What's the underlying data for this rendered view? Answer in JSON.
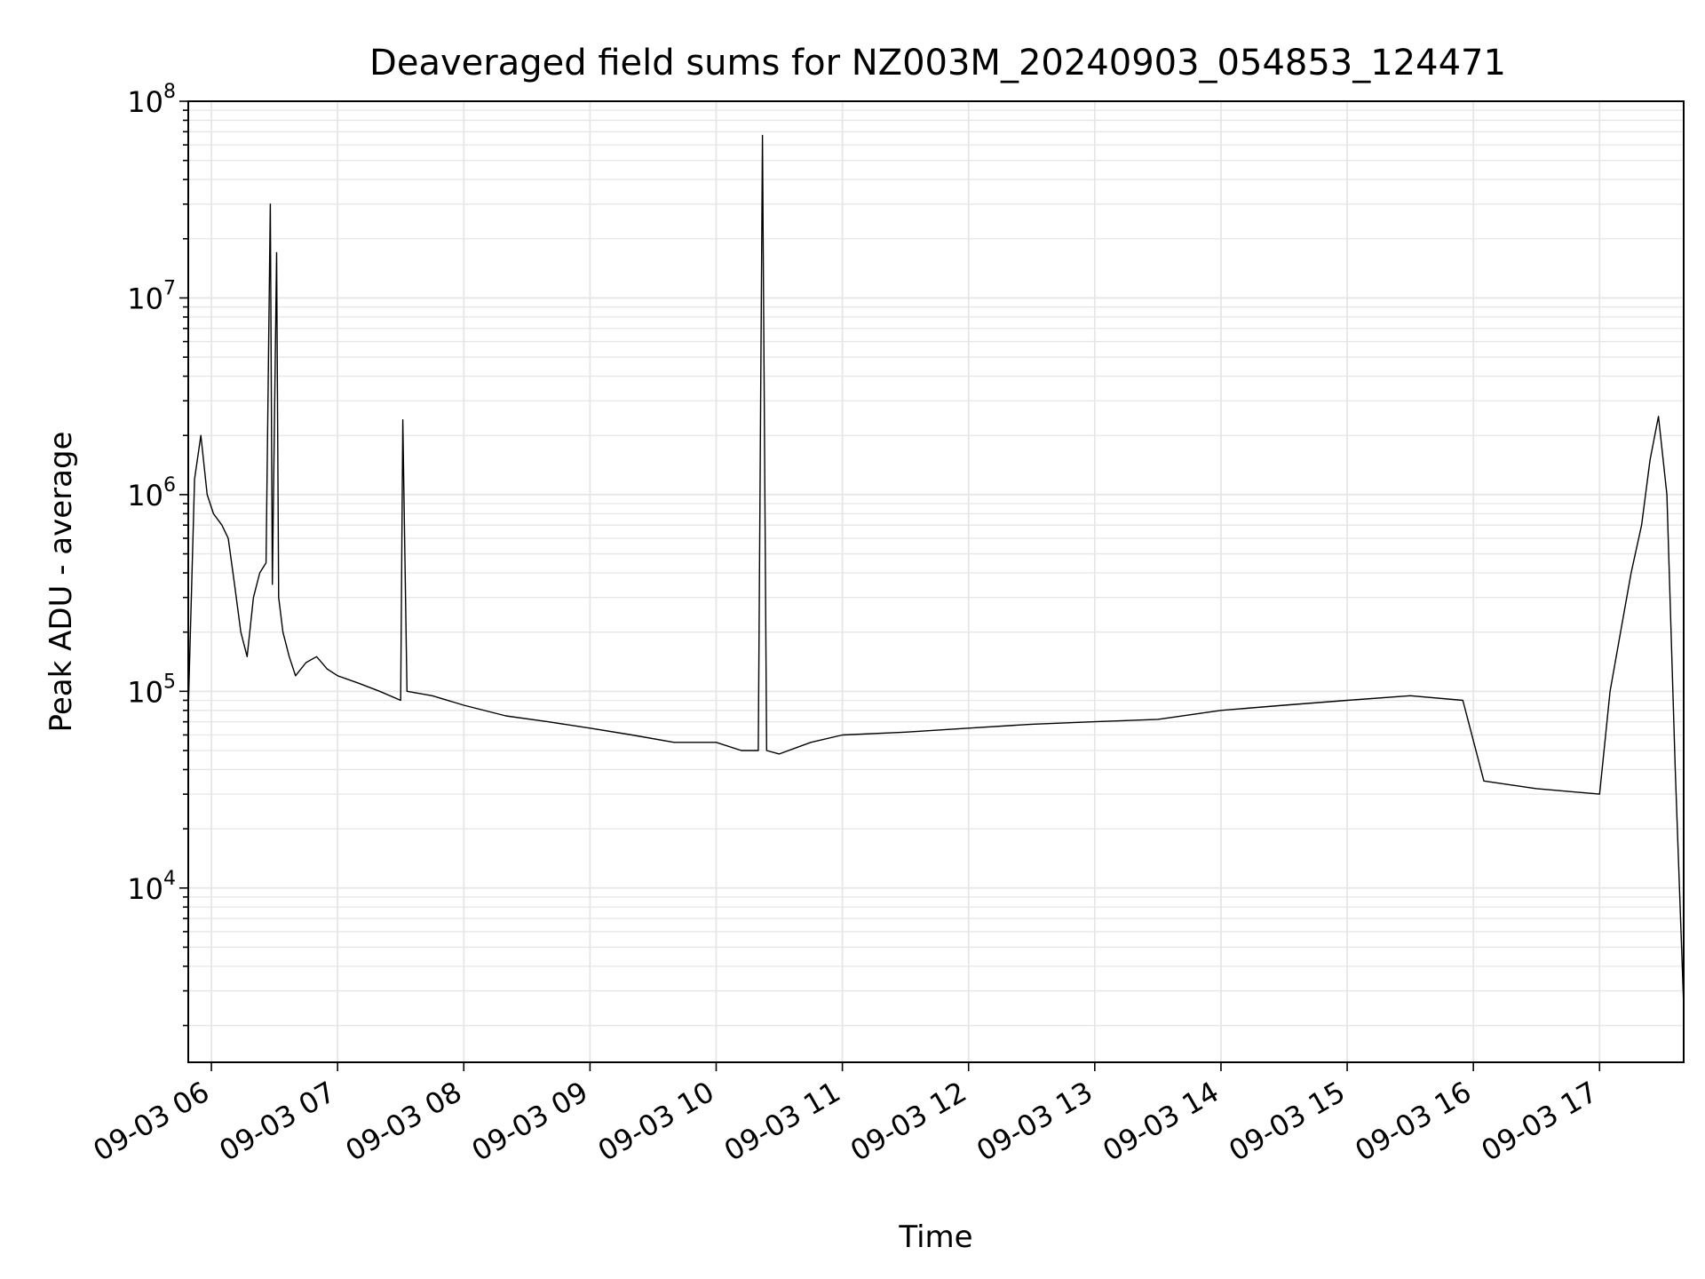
{
  "chart_data": {
    "type": "line",
    "title": "Deaveraged field sums for NZ003M_20240903_054853_124471",
    "xlabel": "Time",
    "ylabel": "Peak ADU - average",
    "yscale": "log",
    "ylim": [
      1300,
      100000000
    ],
    "xlim": [
      "09-03 05:49",
      "09-03 17:40"
    ],
    "grid": true,
    "line_color": "#000000",
    "grid_color": "#e6e6e6",
    "x_ticks": [
      "09-03 06",
      "09-03 07",
      "09-03 08",
      "09-03 09",
      "09-03 10",
      "09-03 11",
      "09-03 12",
      "09-03 13",
      "09-03 14",
      "09-03 15",
      "09-03 16",
      "09-03 17"
    ],
    "y_ticks": [
      {
        "base": "10",
        "exp": "4",
        "value": 10000
      },
      {
        "base": "10",
        "exp": "5",
        "value": 100000
      },
      {
        "base": "10",
        "exp": "6",
        "value": 1000000
      },
      {
        "base": "10",
        "exp": "7",
        "value": 10000000
      },
      {
        "base": "10",
        "exp": "8",
        "value": 100000000
      }
    ],
    "series": [
      {
        "x": [
          "09-03 05:49",
          "09-03 05:52",
          "09-03 05:55",
          "09-03 05:58",
          "09-03 06:01",
          "09-03 06:05",
          "09-03 06:08",
          "09-03 06:11",
          "09-03 06:14",
          "09-03 06:17",
          "09-03 06:20",
          "09-03 06:23",
          "09-03 06:26",
          "09-03 06:28",
          "09-03 06:29",
          "09-03 06:31",
          "09-03 06:32",
          "09-03 06:34",
          "09-03 06:37",
          "09-03 06:40",
          "09-03 06:45",
          "09-03 06:50",
          "09-03 06:55",
          "09-03 07:00",
          "09-03 07:10",
          "09-03 07:20",
          "09-03 07:30",
          "09-03 07:31",
          "09-03 07:33",
          "09-03 07:45",
          "09-03 08:00",
          "09-03 08:20",
          "09-03 08:40",
          "09-03 09:00",
          "09-03 09:20",
          "09-03 09:40",
          "09-03 10:00",
          "09-03 10:12",
          "09-03 10:20",
          "09-03 10:22",
          "09-03 10:24",
          "09-03 10:30",
          "09-03 10:45",
          "09-03 11:00",
          "09-03 11:30",
          "09-03 12:00",
          "09-03 12:30",
          "09-03 13:00",
          "09-03 13:30",
          "09-03 14:00",
          "09-03 14:30",
          "09-03 15:00",
          "09-03 15:30",
          "09-03 15:55",
          "09-03 16:05",
          "09-03 16:30",
          "09-03 17:00",
          "09-03 17:05",
          "09-03 17:10",
          "09-03 17:15",
          "09-03 17:20",
          "09-03 17:24",
          "09-03 17:28",
          "09-03 17:32",
          "09-03 17:36",
          "09-03 17:40"
        ],
        "values": [
          80000,
          1200000,
          2000000,
          1000000,
          800000,
          700000,
          600000,
          350000,
          200000,
          150000,
          300000,
          400000,
          450000,
          30000000,
          350000,
          17000000,
          300000,
          200000,
          150000,
          120000,
          140000,
          150000,
          130000,
          120000,
          110000,
          100000,
          90000,
          2400000,
          100000,
          95000,
          85000,
          75000,
          70000,
          65000,
          60000,
          55000,
          55000,
          50000,
          50000,
          67000000,
          50000,
          48000,
          55000,
          60000,
          62000,
          65000,
          68000,
          70000,
          72000,
          80000,
          85000,
          90000,
          95000,
          90000,
          35000,
          32000,
          30000,
          100000,
          200000,
          400000,
          700000,
          1500000,
          2500000,
          1000000,
          40000,
          2500
        ]
      }
    ]
  }
}
